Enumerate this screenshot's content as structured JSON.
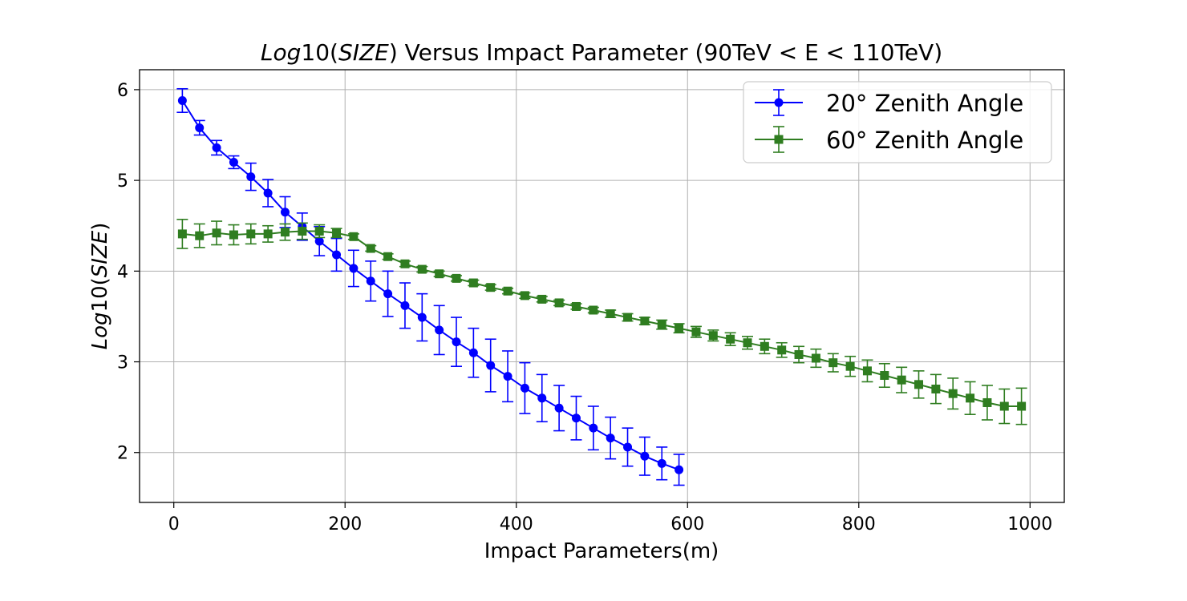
{
  "chart_data": {
    "type": "line",
    "title_parts": {
      "italic": "Log",
      "normal1": "10(",
      "italic2": "SIZE",
      "normal2": ") Versus Impact Parameter (90TeV < E < 110TeV)"
    },
    "xlabel": "Impact Parameters(m)",
    "ylabel_parts": {
      "italic": "Log",
      "normal1": "10(",
      "italic2": "SIZE",
      "normal2": ")"
    },
    "xlim": [
      -40,
      1040
    ],
    "ylim": [
      1.45,
      6.22
    ],
    "xticks": [
      0,
      200,
      400,
      600,
      800,
      1000
    ],
    "yticks": [
      2,
      3,
      4,
      5,
      6
    ],
    "grid": true,
    "legend_position": "top-right",
    "series": [
      {
        "name": "20° Zenith Angle",
        "color": "#0000ff",
        "marker": "circle",
        "x": [
          10,
          30,
          50,
          70,
          90,
          110,
          130,
          150,
          170,
          190,
          210,
          230,
          250,
          270,
          290,
          310,
          330,
          350,
          370,
          390,
          410,
          430,
          450,
          470,
          490,
          510,
          530,
          550,
          570,
          590
        ],
        "y": [
          5.88,
          5.58,
          5.36,
          5.2,
          5.04,
          4.86,
          4.65,
          4.49,
          4.33,
          4.18,
          4.03,
          3.89,
          3.75,
          3.62,
          3.49,
          3.35,
          3.22,
          3.1,
          2.96,
          2.84,
          2.71,
          2.6,
          2.49,
          2.38,
          2.27,
          2.16,
          2.06,
          1.96,
          1.88,
          1.81
        ],
        "err": [
          0.13,
          0.08,
          0.08,
          0.07,
          0.15,
          0.15,
          0.17,
          0.15,
          0.16,
          0.18,
          0.2,
          0.22,
          0.25,
          0.25,
          0.26,
          0.27,
          0.27,
          0.27,
          0.29,
          0.28,
          0.28,
          0.26,
          0.25,
          0.24,
          0.24,
          0.23,
          0.21,
          0.21,
          0.18,
          0.17
        ]
      },
      {
        "name": "60° Zenith Angle",
        "color": "#2f7d20",
        "marker": "square",
        "x": [
          10,
          30,
          50,
          70,
          90,
          110,
          130,
          150,
          170,
          190,
          210,
          230,
          250,
          270,
          290,
          310,
          330,
          350,
          370,
          390,
          410,
          430,
          450,
          470,
          490,
          510,
          530,
          550,
          570,
          590,
          610,
          630,
          650,
          670,
          690,
          710,
          730,
          750,
          770,
          790,
          810,
          830,
          850,
          870,
          890,
          910,
          930,
          950,
          970,
          990
        ],
        "y": [
          4.41,
          4.39,
          4.42,
          4.4,
          4.41,
          4.41,
          4.43,
          4.44,
          4.44,
          4.42,
          4.38,
          4.25,
          4.16,
          4.08,
          4.02,
          3.97,
          3.92,
          3.87,
          3.82,
          3.78,
          3.73,
          3.69,
          3.65,
          3.61,
          3.57,
          3.53,
          3.49,
          3.45,
          3.41,
          3.37,
          3.33,
          3.29,
          3.25,
          3.21,
          3.17,
          3.13,
          3.08,
          3.04,
          2.99,
          2.95,
          2.9,
          2.85,
          2.8,
          2.75,
          2.7,
          2.65,
          2.6,
          2.55,
          2.51,
          2.51
        ],
        "err": [
          0.16,
          0.13,
          0.13,
          0.11,
          0.11,
          0.09,
          0.09,
          0.09,
          0.07,
          0.05,
          0.03,
          0.03,
          0.03,
          0.03,
          0.03,
          0.03,
          0.03,
          0.03,
          0.03,
          0.03,
          0.03,
          0.03,
          0.03,
          0.03,
          0.03,
          0.04,
          0.04,
          0.04,
          0.05,
          0.05,
          0.06,
          0.06,
          0.07,
          0.07,
          0.08,
          0.08,
          0.09,
          0.1,
          0.1,
          0.11,
          0.12,
          0.13,
          0.14,
          0.15,
          0.16,
          0.17,
          0.18,
          0.19,
          0.19,
          0.2
        ]
      }
    ]
  }
}
